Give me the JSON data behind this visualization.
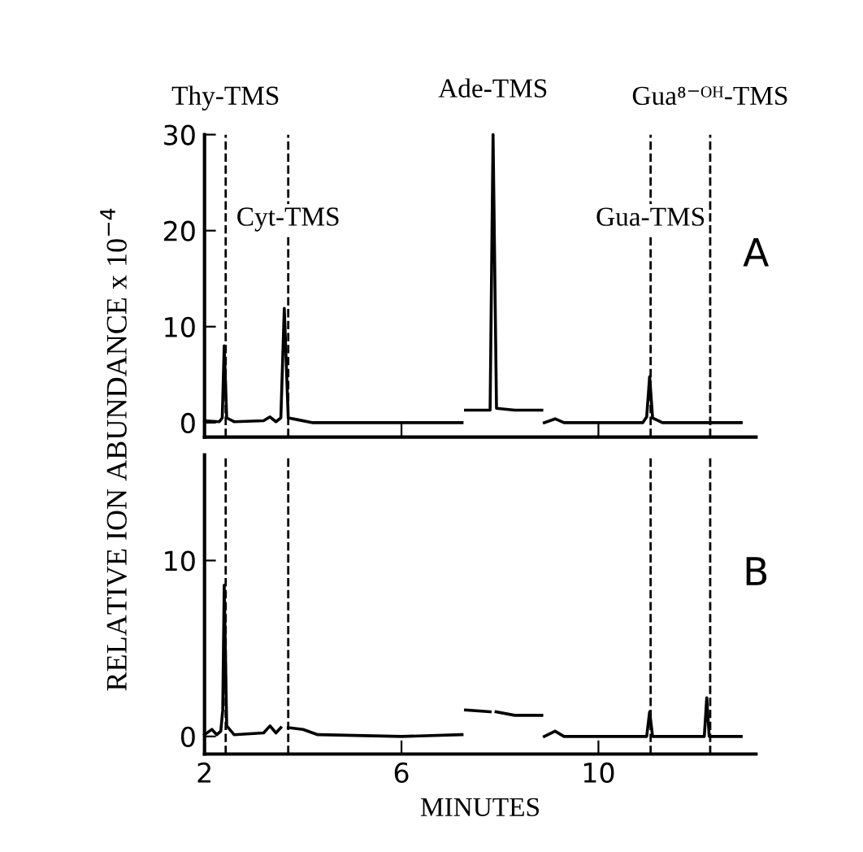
{
  "chart_data": [
    {
      "type": "line",
      "xlim": [
        2,
        13.2
      ],
      "ylim": [
        -1.5,
        30
      ],
      "xticks": [
        {
          "value": 2,
          "label": null
        },
        {
          "value": 6,
          "label": null
        },
        {
          "value": 10,
          "label": null
        }
      ],
      "yticks": [
        0,
        10,
        20,
        30
      ],
      "tick_labels": "y",
      "grid": false,
      "legend": false,
      "marker": "none",
      "line_style": "solid",
      "series": [
        {
          "color": "#000000",
          "x": [
            2.0,
            2.3,
            2.36,
            2.4,
            2.45,
            2.6,
            3.2,
            3.33,
            3.45,
            3.55,
            3.62,
            3.7,
            3.9,
            4.2,
            5.5,
            7.23,
            7.26,
            7.3,
            7.8,
            7.86,
            7.93,
            8.3,
            8.85,
            8.87,
            8.9,
            9.12,
            9.3,
            10.9,
            10.98,
            11.04,
            11.1,
            11.3,
            12.9
          ],
          "values": [
            0.2,
            0.1,
            0.5,
            8.0,
            0.5,
            0.1,
            0.2,
            0.6,
            0.1,
            0.5,
            11.9,
            0.5,
            0.3,
            0.0,
            0.0,
            0.0,
            null,
            1.3,
            1.3,
            30,
            1.5,
            1.3,
            1.3,
            null,
            0.0,
            0.4,
            0.0,
            0.0,
            0.6,
            4.8,
            0.5,
            0.0,
            0.0
          ]
        }
      ],
      "ref_lines": [
        {
          "axis": "x",
          "value": 2.43,
          "color": "#000000",
          "line_style": "dashed",
          "label": "Thy-TMS"
        },
        {
          "axis": "x",
          "value": 3.7,
          "color": "#000000",
          "line_style": "dashed",
          "label": "Cyt-TMS"
        },
        {
          "axis": "x",
          "value": 11.06,
          "color": "#000000",
          "line_style": "dashed",
          "label": "Gua-TMS"
        },
        {
          "axis": "x",
          "value": 12.27,
          "color": "#000000",
          "line_style": "dashed",
          "label": "Gua⁸⁻ᴼᴴ-TMS"
        }
      ],
      "annotations": [
        {
          "text": "Ade-TMS",
          "x": 7.86,
          "y": 30
        },
        "A"
      ]
    },
    {
      "type": "line",
      "xlim": [
        2,
        13.2
      ],
      "ylim": [
        -1,
        16
      ],
      "xticks": [
        2,
        6,
        10
      ],
      "yticks": [
        0,
        10
      ],
      "xlabel": "MINUTES",
      "ylabel": "RELATIVE ION ABUNDANCE x 10$^{−4}$",
      "grid": false,
      "legend": false,
      "marker": "none",
      "line_style": "solid",
      "series": [
        {
          "color": "#000000",
          "x": [
            2.0,
            2.1,
            2.15,
            2.25,
            2.33,
            2.37,
            2.4,
            2.45,
            2.6,
            3.2,
            3.33,
            3.45,
            3.55,
            3.65,
            3.7,
            4.0,
            4.3,
            6.0,
            7.23,
            7.26,
            7.3,
            7.8,
            7.86,
            7.92,
            8.3,
            8.85,
            8.87,
            8.9,
            9.12,
            9.3,
            10.98,
            11.04,
            11.1,
            12.15,
            12.2,
            12.25,
            12.9
          ],
          "values": [
            0.1,
            0.3,
            0.4,
            0.1,
            0.3,
            1.5,
            8.6,
            0.6,
            0.1,
            0.2,
            0.6,
            0.2,
            0.5,
            null,
            0.5,
            0.4,
            0.1,
            0.0,
            0.1,
            null,
            1.5,
            1.4,
            null,
            1.4,
            1.2,
            1.2,
            null,
            0.0,
            0.3,
            0.0,
            0.0,
            1.4,
            0.0,
            0.0,
            2.2,
            0.0,
            0.0
          ]
        }
      ],
      "ref_lines": [
        {
          "axis": "x",
          "value": 2.43,
          "color": "#000000",
          "line_style": "dashed"
        },
        {
          "axis": "x",
          "value": 3.7,
          "color": "#000000",
          "line_style": "dashed"
        },
        {
          "axis": "x",
          "value": 11.06,
          "color": "#000000",
          "line_style": "dashed"
        },
        {
          "axis": "x",
          "value": 12.27,
          "color": "#000000",
          "line_style": "dashed"
        }
      ],
      "annotations": [
        "B"
      ]
    }
  ]
}
